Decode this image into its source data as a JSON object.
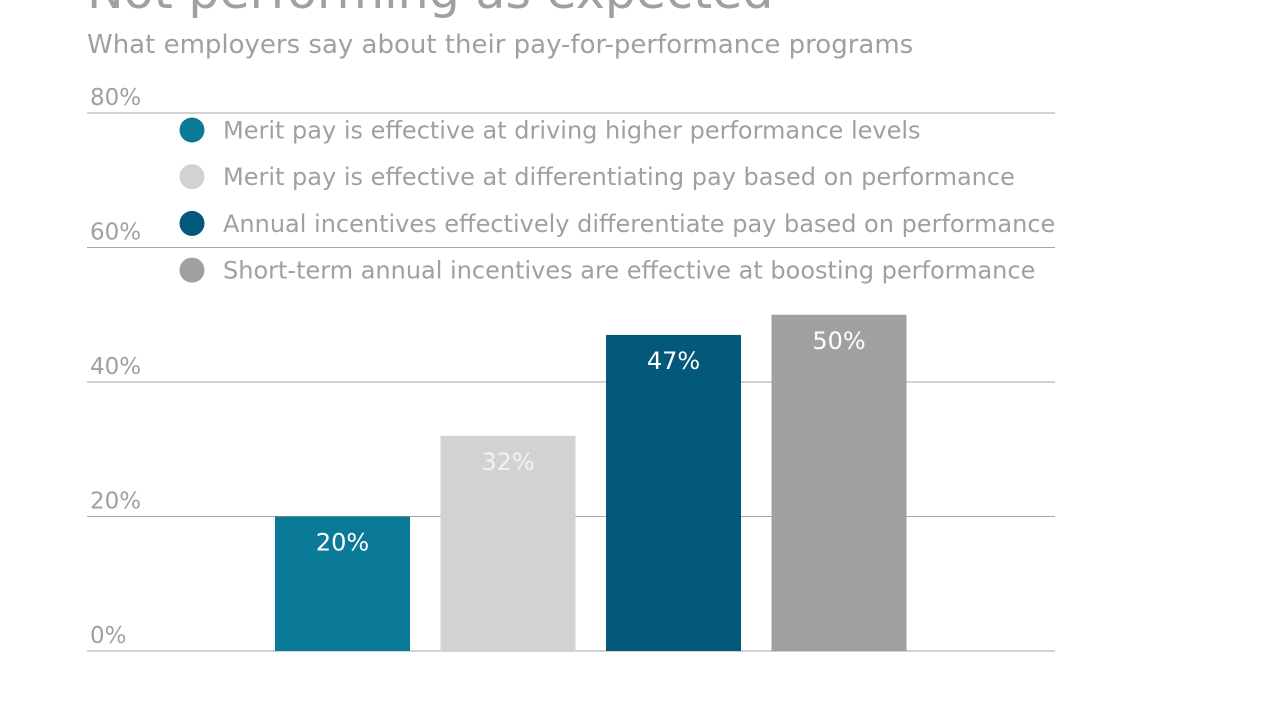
{
  "chart_data": {
    "type": "bar",
    "title": "Not performing as expected",
    "subtitle": "What employers say about their pay-for-performance programs",
    "categories": [
      null
    ],
    "series": [
      {
        "name": "Merit pay is effective at driving higher performance levels",
        "color": "#0b7a99",
        "values": [
          20
        ],
        "value_labels": [
          "20%"
        ]
      },
      {
        "name": "Merit pay is effective at differentiating pay based on performance",
        "color": "#d3d2d3",
        "values": [
          32
        ],
        "value_labels": [
          "32%"
        ]
      },
      {
        "name": "Annual incentives effectively differentiate pay based on performance",
        "color": "#04587a",
        "values": [
          47
        ],
        "value_labels": [
          "47%"
        ]
      },
      {
        "name": "Short-term annual incentives are effective at boosting performance",
        "color": "#a0a09f",
        "values": [
          50
        ],
        "value_labels": [
          "50%"
        ]
      }
    ],
    "ylim": [
      0,
      80
    ],
    "yticks": [
      {
        "value": 0,
        "label": "0%"
      },
      {
        "value": 20,
        "label": "20%"
      },
      {
        "value": 40,
        "label": "40%"
      },
      {
        "value": 60,
        "label": "60%"
      },
      {
        "value": 80,
        "label": "80%"
      }
    ],
    "grid": true
  }
}
